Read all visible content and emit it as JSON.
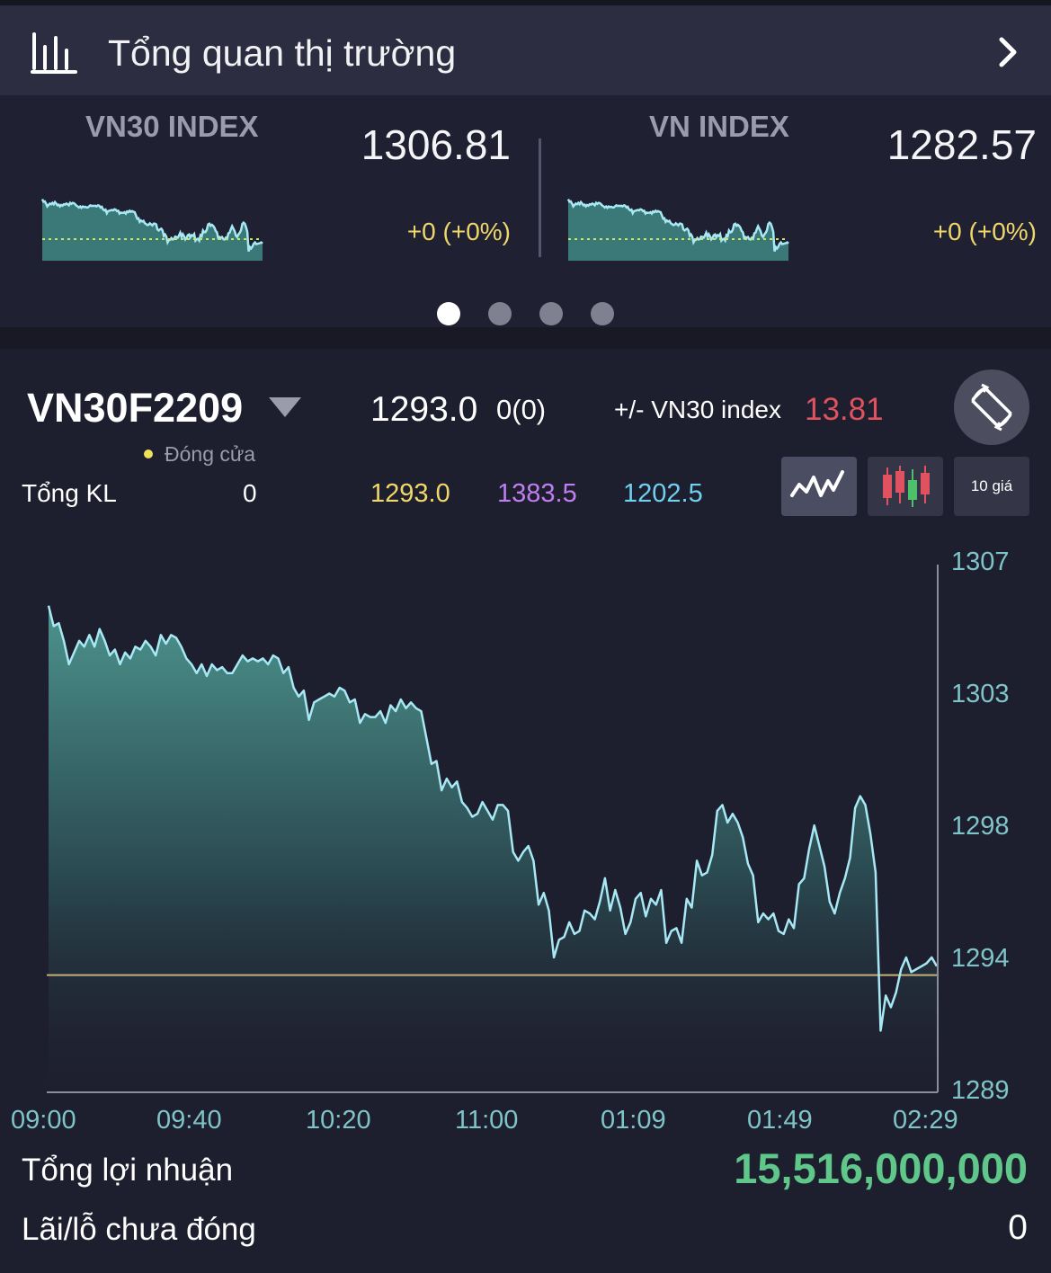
{
  "header": {
    "title": "Tổng quan thị trường"
  },
  "index_cards": [
    {
      "name": "VN30 INDEX",
      "value": "1306.81",
      "change": "+0 (+0%)"
    },
    {
      "name": "VN INDEX",
      "value": "1282.57",
      "change": "+0 (+0%)"
    }
  ],
  "carousel": {
    "page_count": 4,
    "active_index": 0
  },
  "contract": {
    "symbol": "VN30F2209",
    "price": "1293.0",
    "change": "0(0)",
    "basis_label": "+/- VN30 index",
    "basis_value": "13.81",
    "status": "Đóng cửa",
    "volume_label": "Tổng KL",
    "volume_value": "0",
    "ref_price": "1293.0",
    "ceiling_price": "1383.5",
    "floor_price": "1202.5"
  },
  "chart_tools": {
    "ten_prices_label": "10 giá"
  },
  "colors": {
    "line": "#a8e8f5",
    "ref_line": "#c8b07a",
    "ceiling": "#c07ef0",
    "floor": "#6fd0f0",
    "profit": "#5fc78a",
    "basis": "#e05260"
  },
  "chart_data": {
    "type": "area",
    "x_ticks": [
      "09:00",
      "09:40",
      "10:20",
      "11:00",
      "01:09",
      "01:49",
      "02:29"
    ],
    "y_ticks": [
      "1307",
      "1303",
      "1298",
      "1294",
      "1289"
    ],
    "ylim": [
      1289,
      1307
    ],
    "reference": 1293.0,
    "series_values": [
      1305.6,
      1304.9,
      1305.0,
      1304.4,
      1303.6,
      1304.0,
      1304.4,
      1304.2,
      1304.6,
      1304.2,
      1304.8,
      1304.4,
      1303.9,
      1304.1,
      1303.6,
      1304.0,
      1303.8,
      1304.2,
      1304.1,
      1304.4,
      1304.2,
      1303.9,
      1304.6,
      1304.3,
      1304.6,
      1304.5,
      1304.2,
      1303.8,
      1303.6,
      1303.3,
      1303.6,
      1303.2,
      1303.6,
      1303.4,
      1303.5,
      1303.3,
      1303.3,
      1303.6,
      1303.9,
      1303.7,
      1303.8,
      1303.7,
      1303.8,
      1303.6,
      1303.9,
      1303.8,
      1303.3,
      1303.5,
      1302.8,
      1302.5,
      1302.7,
      1301.7,
      1302.3,
      1302.4,
      1302.5,
      1302.6,
      1302.5,
      1302.8,
      1302.7,
      1302.3,
      1302.4,
      1301.6,
      1301.9,
      1301.8,
      1301.8,
      1302.0,
      1301.6,
      1302.2,
      1302.0,
      1302.4,
      1302.1,
      1302.3,
      1302.1,
      1302.0,
      1301.1,
      1300.2,
      1300.3,
      1299.3,
      1299.7,
      1299.4,
      1299.6,
      1298.9,
      1298.7,
      1298.4,
      1298.5,
      1298.9,
      1298.6,
      1298.3,
      1298.8,
      1298.8,
      1298.6,
      1297.2,
      1296.9,
      1297.2,
      1297.4,
      1296.9,
      1295.4,
      1295.8,
      1295.2,
      1293.6,
      1294.2,
      1294.3,
      1294.8,
      1294.4,
      1294.5,
      1295.2,
      1295.1,
      1294.9,
      1295.5,
      1296.3,
      1295.2,
      1295.9,
      1295.3,
      1294.4,
      1294.8,
      1295.6,
      1295.8,
      1295.0,
      1295.6,
      1295.4,
      1295.9,
      1294.1,
      1294.5,
      1294.6,
      1294.1,
      1295.6,
      1295.3,
      1296.9,
      1296.4,
      1296.5,
      1297.1,
      1298.6,
      1298.8,
      1298.2,
      1298.5,
      1298.2,
      1297.7,
      1296.8,
      1296.4,
      1294.8,
      1295.1,
      1294.9,
      1295.1,
      1294.5,
      1294.4,
      1294.9,
      1294.6,
      1296.1,
      1296.3,
      1297.3,
      1298.1,
      1297.4,
      1296.7,
      1295.5,
      1295.1,
      1295.8,
      1296.3,
      1297.0,
      1298.7,
      1299.1,
      1298.8,
      1297.8,
      1296.5,
      1291.1,
      1292.3,
      1291.9,
      1292.4,
      1293.2,
      1293.6,
      1293.1,
      1293.2,
      1293.3,
      1293.4,
      1293.6,
      1293.3
    ]
  }
}
